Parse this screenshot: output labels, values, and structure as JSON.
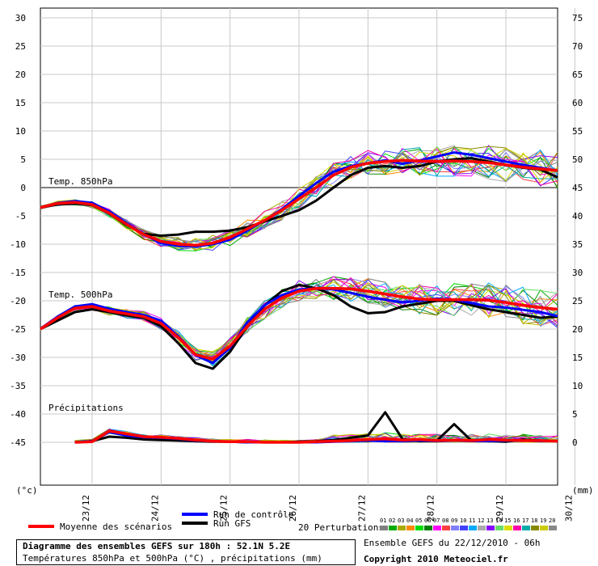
{
  "chart_data": {
    "type": "line",
    "left_axis": {
      "unit_label": "(°c)",
      "ylim": [
        -55,
        30
      ],
      "ticks": [
        30,
        25,
        20,
        15,
        10,
        5,
        0,
        -5,
        -10,
        -15,
        -20,
        -25,
        -30,
        -35,
        -40,
        -45
      ]
    },
    "right_axis": {
      "unit_label": "(mm)",
      "ticks": [
        75,
        70,
        65,
        60,
        55,
        50,
        45,
        40,
        35,
        30,
        25,
        20,
        15,
        10,
        5,
        0
      ]
    },
    "x_ticks": [
      "23/12",
      "24/12",
      "25/12",
      "26/12",
      "27/12",
      "28/12",
      "29/12",
      "30/12"
    ],
    "panel_labels": {
      "t850": "Temp. 850hPa",
      "t500": "Temp. 500hPa",
      "precip": "Précipitations"
    },
    "x_hours": [
      0,
      6,
      12,
      18,
      24,
      30,
      36,
      42,
      48,
      54,
      60,
      66,
      72,
      78,
      84,
      90,
      96,
      102,
      108,
      114,
      120,
      126,
      132,
      138,
      144,
      150,
      156,
      162,
      168,
      174,
      180
    ],
    "series": [
      {
        "name": "Moyenne des scénarios",
        "color": "#ff0000",
        "t850": [
          -3.5,
          -2.8,
          -2.6,
          -3.0,
          -4.5,
          -6.5,
          -8.3,
          -9.5,
          -10.0,
          -10.2,
          -9.8,
          -8.8,
          -7.3,
          -5.8,
          -4.0,
          -2.0,
          0.0,
          2.2,
          3.6,
          4.3,
          4.6,
          4.8,
          4.7,
          4.6,
          4.7,
          4.6,
          4.4,
          4.0,
          3.6,
          3.3,
          3.0
        ],
        "t500": [
          -25.0,
          -23.0,
          -21.3,
          -21.0,
          -21.8,
          -22.3,
          -22.8,
          -24.0,
          -26.5,
          -29.5,
          -30.3,
          -28.0,
          -24.5,
          -21.5,
          -19.5,
          -18.3,
          -17.8,
          -17.8,
          -17.9,
          -18.3,
          -18.8,
          -19.3,
          -19.7,
          -19.8,
          -19.8,
          -19.8,
          -19.9,
          -20.3,
          -20.8,
          -21.2,
          -21.5
        ],
        "precip": [
          null,
          null,
          0.0,
          0.1,
          2.0,
          1.5,
          1.0,
          0.9,
          0.7,
          0.4,
          0.2,
          0.1,
          0.1,
          0.0,
          0.0,
          0.0,
          0.1,
          0.2,
          0.3,
          0.5,
          0.6,
          0.4,
          0.5,
          0.3,
          0.4,
          0.3,
          0.5,
          0.4,
          0.3,
          0.3,
          0.2
        ]
      },
      {
        "name": "Run de contrôle",
        "color": "#0000ff",
        "t850": [
          -3.5,
          -2.7,
          -2.4,
          -2.7,
          -4.2,
          -6.3,
          -8.3,
          -9.8,
          -10.3,
          -10.4,
          -10.0,
          -9.2,
          -7.6,
          -5.8,
          -3.8,
          -1.5,
          0.8,
          2.8,
          3.8,
          4.3,
          4.8,
          4.2,
          4.8,
          5.5,
          6.2,
          5.8,
          5.2,
          4.6,
          4.0,
          3.5,
          3.0
        ],
        "t500": [
          -25.0,
          -22.8,
          -21.0,
          -20.6,
          -21.4,
          -22.0,
          -22.5,
          -23.5,
          -26.3,
          -29.6,
          -31.0,
          -28.3,
          -23.8,
          -20.8,
          -19.0,
          -18.0,
          -17.8,
          -18.0,
          -18.6,
          -19.3,
          -19.8,
          -20.3,
          -20.0,
          -19.6,
          -19.8,
          -20.4,
          -21.0,
          -21.2,
          -21.6,
          -22.0,
          -22.7
        ],
        "precip": [
          null,
          null,
          0.0,
          0.2,
          1.8,
          1.2,
          0.9,
          0.8,
          0.6,
          0.3,
          0.2,
          0.1,
          0.0,
          0.0,
          0.0,
          0.0,
          0.0,
          0.1,
          0.2,
          0.3,
          0.2,
          0.2,
          0.3,
          0.2,
          0.3,
          0.2,
          0.2,
          0.3,
          0.3,
          0.2,
          0.2
        ]
      },
      {
        "name": "Run GFS",
        "color": "#000000",
        "t850": [
          -3.5,
          -3.0,
          -2.8,
          -3.1,
          -4.6,
          -6.6,
          -8.2,
          -8.5,
          -8.3,
          -7.8,
          -7.8,
          -7.6,
          -7.0,
          -6.0,
          -5.0,
          -4.0,
          -2.3,
          0.0,
          2.2,
          3.5,
          3.8,
          3.5,
          3.8,
          4.6,
          5.0,
          5.2,
          4.6,
          4.0,
          3.5,
          3.2,
          1.8
        ],
        "t500": [
          -25.0,
          -23.5,
          -22.0,
          -21.5,
          -22.0,
          -22.6,
          -23.0,
          -24.5,
          -27.5,
          -31.0,
          -32.0,
          -29.0,
          -24.5,
          -20.8,
          -18.3,
          -17.2,
          -17.8,
          -19.0,
          -21.0,
          -22.2,
          -22.0,
          -21.0,
          -20.5,
          -20.0,
          -20.0,
          -20.8,
          -21.5,
          -22.0,
          -22.5,
          -23.0,
          -22.8
        ],
        "precip": [
          null,
          null,
          0.0,
          0.2,
          1.0,
          0.8,
          0.5,
          0.4,
          0.3,
          0.2,
          0.1,
          0.1,
          0.0,
          0.0,
          0.0,
          0.1,
          0.2,
          0.4,
          0.8,
          1.2,
          5.3,
          0.6,
          0.2,
          0.3,
          3.2,
          0.3,
          0.2,
          0.1,
          0.5,
          0.3,
          0.2
        ]
      }
    ],
    "legend": {
      "mean": "Moyenne des scénarios",
      "control": "Run de contrôle",
      "gfs": "Run GFS",
      "perturbations": "20 Perturbations",
      "perturbation_ids": [
        "01",
        "02",
        "03",
        "04",
        "05",
        "06",
        "07",
        "08",
        "09",
        "10",
        "11",
        "12",
        "13",
        "14",
        "15",
        "16",
        "17",
        "18",
        "19",
        "20"
      ],
      "perturbation_colors": [
        "#808080",
        "#00aa00",
        "#aaaa00",
        "#ff8800",
        "#00dd00",
        "#008000",
        "#ff00ff",
        "#ff4040",
        "#8080ff",
        "#4040ff",
        "#00aaff",
        "#aaaaaa",
        "#8800ff",
        "#66dd66",
        "#dddd00",
        "#ff00aa",
        "#00aaaa",
        "#888800",
        "#cccc00",
        "#888888"
      ]
    },
    "footer": {
      "title": "Diagramme des ensembles GEFS sur 180h : 52.1N 5.2E",
      "subtitle": "Températures 850hPa et 500hPa (°C) , précipitations (mm)",
      "run_info": "Ensemble GEFS du 22/12/2010 - 06h",
      "copyright": "Copyright 2010 Meteociel.fr"
    }
  }
}
